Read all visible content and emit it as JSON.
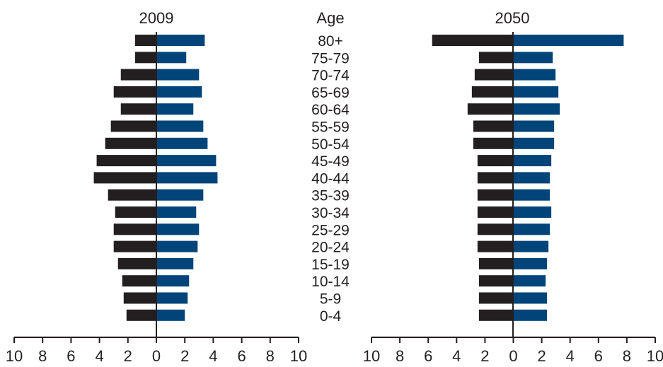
{
  "chart_data": [
    {
      "type": "bar",
      "title": "2009",
      "orientation": "horizontal-pyramid",
      "categories": [
        "80+",
        "75-79",
        "70-74",
        "65-69",
        "60-64",
        "55-59",
        "50-54",
        "45-49",
        "40-44",
        "35-39",
        "30-34",
        "25-29",
        "20-24",
        "15-19",
        "10-14",
        "5-9",
        "0-4"
      ],
      "series": [
        {
          "values": [
            1.5,
            1.5,
            2.5,
            3.0,
            2.5,
            3.2,
            3.6,
            4.2,
            4.4,
            3.4,
            2.9,
            3.0,
            3.0,
            2.7,
            2.4,
            2.3,
            2.1
          ],
          "color": "#231f20"
        },
        {
          "values": [
            3.4,
            2.1,
            3.0,
            3.2,
            2.6,
            3.3,
            3.6,
            4.2,
            4.3,
            3.3,
            2.8,
            3.0,
            2.9,
            2.6,
            2.3,
            2.2,
            2.0
          ],
          "color": "#004479"
        }
      ],
      "xlim": [
        -10,
        10
      ],
      "xticks": [
        "10",
        "8",
        "6",
        "4",
        "2",
        "0",
        "2",
        "4",
        "6",
        "8",
        "10"
      ]
    },
    {
      "type": "bar",
      "title": "2050",
      "orientation": "horizontal-pyramid",
      "categories": [
        "80+",
        "75-79",
        "70-74",
        "65-69",
        "60-64",
        "55-59",
        "50-54",
        "45-49",
        "40-44",
        "35-39",
        "30-34",
        "25-29",
        "20-24",
        "15-19",
        "10-14",
        "5-9",
        "0-4"
      ],
      "series": [
        {
          "values": [
            5.7,
            2.4,
            2.7,
            2.9,
            3.2,
            2.8,
            2.8,
            2.5,
            2.5,
            2.5,
            2.5,
            2.5,
            2.5,
            2.4,
            2.4,
            2.4,
            2.4
          ],
          "color": "#231f20"
        },
        {
          "values": [
            7.8,
            2.8,
            3.0,
            3.2,
            3.3,
            2.9,
            2.9,
            2.7,
            2.6,
            2.6,
            2.7,
            2.6,
            2.5,
            2.4,
            2.3,
            2.4,
            2.4
          ],
          "color": "#004479"
        }
      ],
      "xlim": [
        -10,
        10
      ],
      "xticks": [
        "10",
        "8",
        "6",
        "4",
        "2",
        "0",
        "2",
        "4",
        "6",
        "8",
        "10"
      ]
    }
  ],
  "age_header": "Age",
  "age_labels": [
    "80+",
    "75-79",
    "70-74",
    "65-69",
    "60-64",
    "55-59",
    "50-54",
    "45-49",
    "40-44",
    "35-39",
    "30-34",
    "25-29",
    "20-24",
    "15-19",
    "10-14",
    "5-9",
    "0-4"
  ]
}
